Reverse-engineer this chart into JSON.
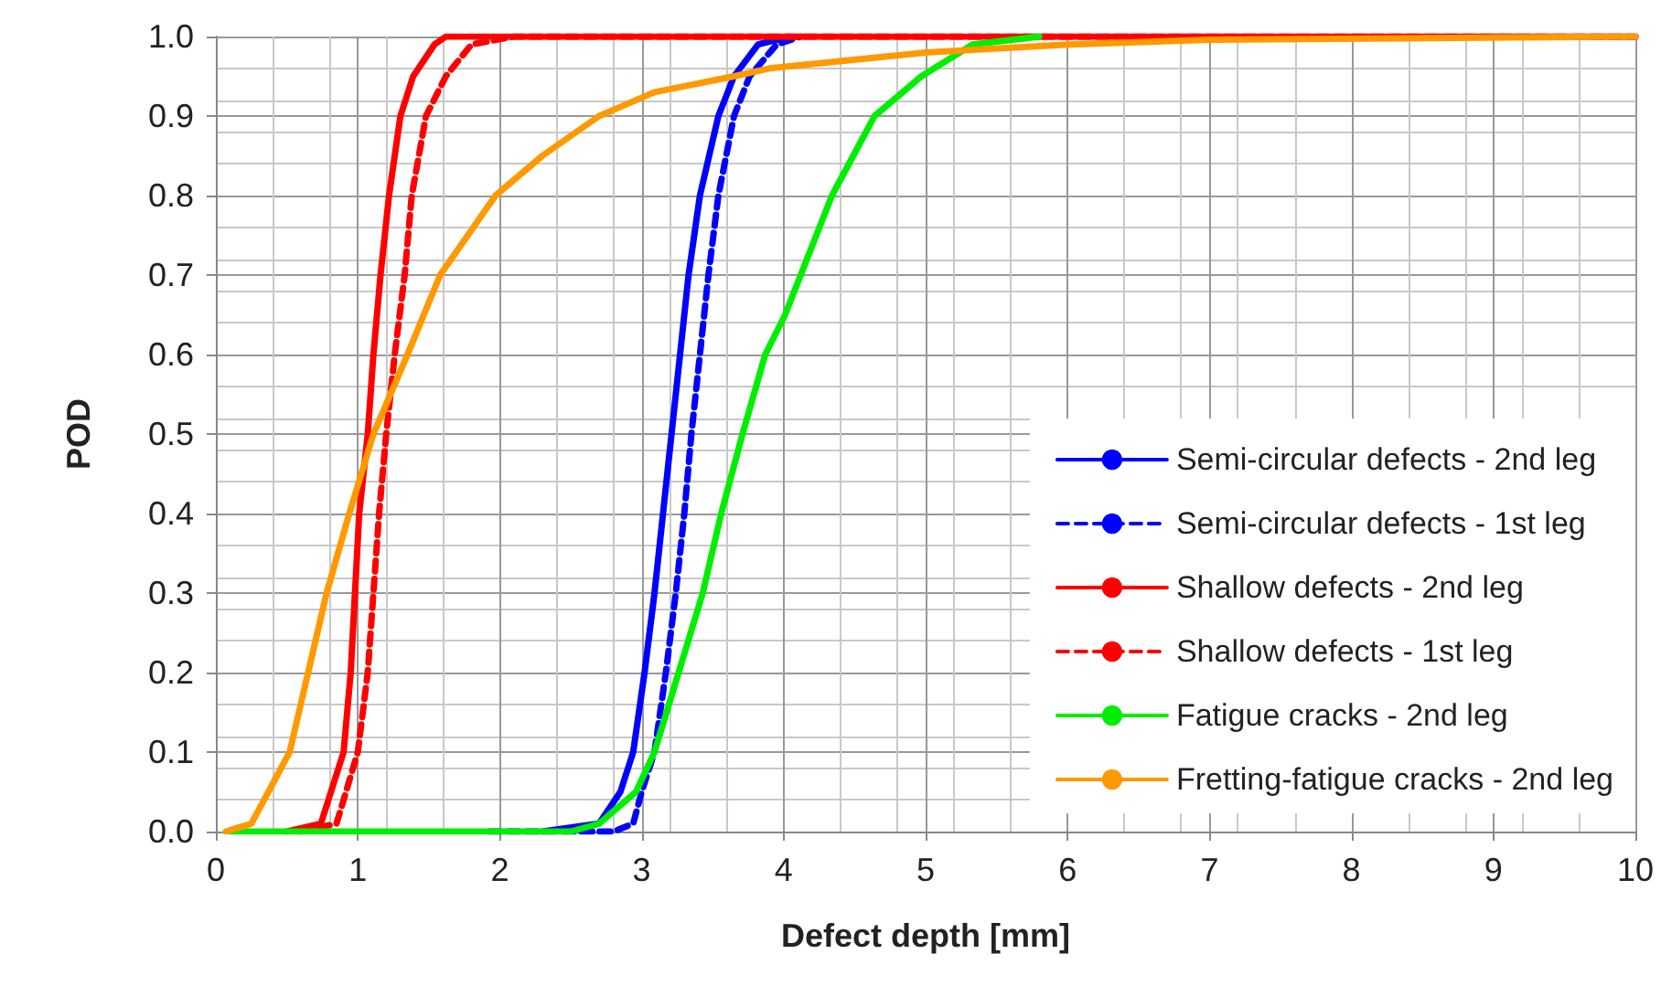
{
  "chart_data": {
    "type": "line",
    "xlabel": "Defect depth [mm]",
    "ylabel": "POD",
    "xlim": [
      0,
      10
    ],
    "xticks": [
      0,
      1,
      2,
      3,
      4,
      5,
      6,
      7,
      8,
      9,
      10
    ],
    "ylim": [
      0,
      1
    ],
    "yticks": [
      {
        "value": 0,
        "label": "0.0"
      },
      {
        "value": 0.1,
        "label": "0.1"
      },
      {
        "value": 0.2,
        "label": "0.2"
      },
      {
        "value": 0.3,
        "label": "0.3"
      },
      {
        "value": 0.4,
        "label": "0.4"
      },
      {
        "value": 0.5,
        "label": "0.5"
      },
      {
        "value": 0.6,
        "label": "0.6"
      },
      {
        "value": 0.7,
        "label": "0.7"
      },
      {
        "value": 0.8,
        "label": "0.8"
      },
      {
        "value": 0.9,
        "label": "0.9"
      },
      {
        "value": 1,
        "label": "1.0"
      }
    ],
    "grid": true,
    "legend": "bottom right",
    "marker": "none",
    "series": [
      {
        "name": "Semi-circular defects - 2nd leg",
        "color": "#0000ff",
        "line_style": "solid",
        "x": [
          2.3,
          2.7,
          2.85,
          2.94,
          3.02,
          3.09,
          3.15,
          3.21,
          3.27,
          3.33,
          3.41,
          3.54,
          3.65,
          3.82,
          4.04
        ],
        "values": [
          0,
          0.01,
          0.05,
          0.1,
          0.2,
          0.3,
          0.4,
          0.5,
          0.6,
          0.7,
          0.8,
          0.9,
          0.95,
          0.99,
          1
        ]
      },
      {
        "name": "Semi-circular defects - 1st leg",
        "color": "#0000ff",
        "line_style": "dashed",
        "x": [
          1.93,
          2.8,
          2.94,
          3.0,
          3.09,
          3.17,
          3.24,
          3.3,
          3.35,
          3.41,
          3.47,
          3.54,
          3.65,
          3.76,
          3.95,
          4.12
        ],
        "values": [
          0,
          0,
          0.01,
          0.05,
          0.1,
          0.2,
          0.3,
          0.4,
          0.5,
          0.6,
          0.7,
          0.8,
          0.9,
          0.95,
          0.99,
          1
        ]
      },
      {
        "name": "Shallow defects - 2nd leg",
        "color": "#ff0000",
        "line_style": "solid",
        "x": [
          0.5,
          0.74,
          0.9,
          0.95,
          1.01,
          1.07,
          1.11,
          1.16,
          1.22,
          1.3,
          1.39,
          1.54,
          1.62,
          10
        ],
        "values": [
          0,
          0.01,
          0.1,
          0.2,
          0.4,
          0.5,
          0.6,
          0.7,
          0.8,
          0.9,
          0.95,
          0.99,
          1,
          1
        ]
      },
      {
        "name": "Shallow defects - 1st leg",
        "color": "#ff0000",
        "line_style": "dashed",
        "x": [
          0.6,
          0.85,
          1.0,
          1.07,
          1.15,
          1.2,
          1.26,
          1.33,
          1.38,
          1.48,
          1.62,
          1.8,
          2.1,
          10
        ],
        "values": [
          0,
          0.01,
          0.1,
          0.2,
          0.4,
          0.5,
          0.6,
          0.7,
          0.8,
          0.9,
          0.95,
          0.99,
          1,
          1
        ]
      },
      {
        "name": "Fatigue cracks - 2nd leg",
        "color": "#00ee00",
        "line_style": "solid",
        "x": [
          0.1,
          2.5,
          2.7,
          2.96,
          3.09,
          3.26,
          3.43,
          3.56,
          3.71,
          3.87,
          4.01,
          4.12,
          4.34,
          4.64,
          4.97,
          5.33,
          5.8
        ],
        "values": [
          0,
          0,
          0.01,
          0.05,
          0.1,
          0.2,
          0.3,
          0.4,
          0.5,
          0.6,
          0.65,
          0.7,
          0.8,
          0.9,
          0.95,
          0.99,
          1
        ]
      },
      {
        "name": "Fretting-fatigue cracks - 2nd leg",
        "color": "#ff9900",
        "line_style": "solid",
        "x": [
          0.07,
          0.25,
          0.52,
          0.65,
          0.78,
          0.94,
          1.11,
          1.35,
          1.58,
          1.97,
          2.3,
          2.7,
          3.09,
          3.65,
          3.9,
          5,
          6,
          7,
          10
        ],
        "values": [
          0,
          0.01,
          0.1,
          0.2,
          0.3,
          0.4,
          0.5,
          0.6,
          0.7,
          0.8,
          0.85,
          0.9,
          0.93,
          0.95,
          0.96,
          0.98,
          0.99,
          0.996,
          1
        ]
      }
    ]
  }
}
